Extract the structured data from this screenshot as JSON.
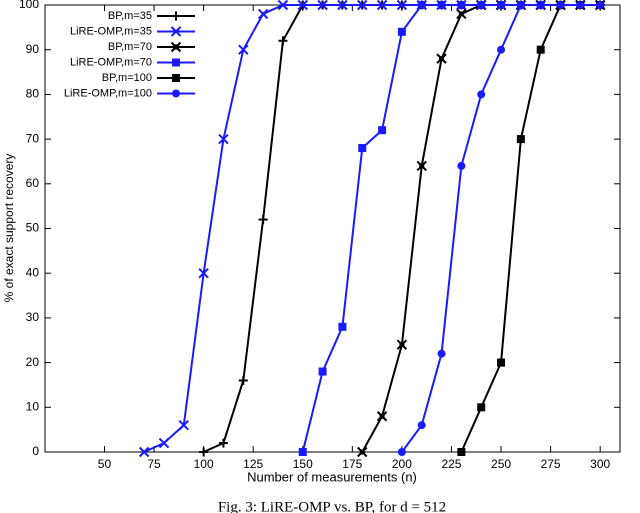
{
  "chart_data": {
    "type": "line",
    "xlabel": "Number of measurements (n)",
    "ylabel": "% of exact support recovery",
    "caption": "Fig. 3: LiRE-OMP vs. BP, for d = 512",
    "xlim": [
      20,
      310
    ],
    "ylim": [
      0,
      100
    ],
    "xticks": [
      50,
      75,
      100,
      125,
      150,
      175,
      200,
      225,
      250,
      275,
      300
    ],
    "yticks": [
      0,
      10,
      20,
      30,
      40,
      50,
      60,
      70,
      80,
      90,
      100
    ],
    "legend": "upper-left",
    "series": [
      {
        "name": "BP,m=35",
        "color": "#000000",
        "marker": "plus",
        "x": [
          100,
          110,
          120,
          130,
          140,
          150,
          160,
          170,
          180,
          190,
          200,
          210,
          220,
          230,
          240,
          250,
          260,
          270,
          280,
          290,
          300
        ],
        "values": [
          0,
          2,
          16,
          52,
          92,
          100,
          100,
          100,
          100,
          100,
          100,
          100,
          100,
          100,
          100,
          100,
          100,
          100,
          100,
          100,
          100
        ]
      },
      {
        "name": "LiRE-OMP,m=35",
        "color": "#1a1aff",
        "marker": "x",
        "x": [
          70,
          80,
          90,
          100,
          110,
          120,
          130,
          140,
          150,
          160,
          170,
          180,
          190,
          200,
          210,
          220,
          230,
          240,
          250,
          260,
          270,
          280,
          290,
          300
        ],
        "values": [
          0,
          2,
          6,
          40,
          70,
          90,
          98,
          100,
          100,
          100,
          100,
          100,
          100,
          100,
          100,
          100,
          100,
          100,
          100,
          100,
          100,
          100,
          100,
          100
        ]
      },
      {
        "name": "BP,m=70",
        "color": "#000000",
        "marker": "star",
        "x": [
          180,
          190,
          200,
          210,
          220,
          230,
          240,
          250,
          260,
          270,
          280,
          290,
          300
        ],
        "values": [
          0,
          8,
          24,
          64,
          88,
          98,
          100,
          100,
          100,
          100,
          100,
          100,
          100
        ]
      },
      {
        "name": "LiRE-OMP,m=70",
        "color": "#1a1aff",
        "marker": "square",
        "x": [
          150,
          160,
          170,
          180,
          190,
          200,
          210,
          220,
          230,
          240,
          250,
          260,
          270,
          280,
          290,
          300
        ],
        "values": [
          0,
          18,
          28,
          68,
          72,
          94,
          100,
          100,
          100,
          100,
          100,
          100,
          100,
          100,
          100,
          100
        ]
      },
      {
        "name": "BP,m=100",
        "color": "#000000",
        "marker": "square",
        "x": [
          230,
          240,
          250,
          260,
          270,
          280,
          290,
          300
        ],
        "values": [
          0,
          10,
          20,
          70,
          90,
          100,
          100,
          100
        ]
      },
      {
        "name": "LiRE-OMP,m=100",
        "color": "#1a1aff",
        "marker": "circle",
        "x": [
          200,
          210,
          220,
          230,
          240,
          250,
          260,
          270,
          280,
          290,
          300
        ],
        "values": [
          0,
          6,
          22,
          64,
          80,
          90,
          100,
          100,
          100,
          100,
          100
        ]
      }
    ]
  }
}
